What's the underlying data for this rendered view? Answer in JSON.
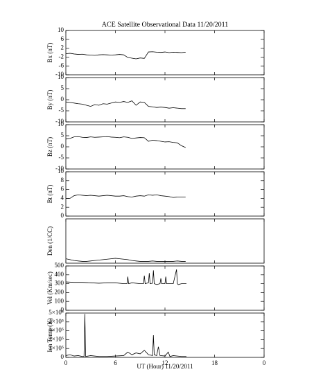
{
  "chart_data": [
    {
      "type": "line",
      "title": "ACE Satellite Observational Data   11/20/2011",
      "ylabel": "Bx (nT)",
      "x": [
        0,
        0.5,
        1,
        1.5,
        2,
        2.5,
        3,
        3.5,
        4,
        4.5,
        5,
        5.5,
        6,
        6.5,
        7,
        7.5,
        8,
        8.5,
        9,
        9.5,
        10,
        10.5,
        11,
        11.5,
        12,
        12.5,
        13,
        13.5,
        14,
        14.5
      ],
      "values": [
        -0.5,
        -0.3,
        -0.6,
        -0.8,
        -0.7,
        -1,
        -1.1,
        -1.2,
        -1,
        -0.9,
        -1,
        -1.1,
        -1,
        -0.8,
        -1,
        -2.2,
        -2.5,
        -2.8,
        -2.4,
        -2.6,
        0.3,
        0.4,
        0.2,
        0.1,
        0.3,
        0,
        0.2,
        0.1,
        0,
        0.2
      ],
      "color": "#000000",
      "xlim": [
        0,
        24
      ],
      "xticks": [
        0,
        6,
        12,
        18,
        24
      ],
      "ylim": [
        -10,
        10
      ],
      "yticks": [
        -10,
        -6,
        -2,
        2,
        6,
        10
      ]
    },
    {
      "type": "line",
      "ylabel": "By (nT)",
      "x": [
        0,
        0.5,
        1,
        1.5,
        2,
        2.5,
        3,
        3.5,
        4,
        4.5,
        5,
        5.5,
        6,
        6.5,
        7,
        7.5,
        8,
        8.5,
        9,
        9.5,
        10,
        10.5,
        11,
        11.5,
        12,
        12.5,
        13,
        13.5,
        14,
        14.5
      ],
      "values": [
        -1,
        -1.2,
        -1.5,
        -1.8,
        -2,
        -2.5,
        -3,
        -2.2,
        -2.5,
        -1.8,
        -2,
        -1.5,
        -1,
        -1.2,
        -0.8,
        -1.2,
        -0.5,
        -2.5,
        -1,
        -1.2,
        -3,
        -3.2,
        -3.5,
        -3.3,
        -3.5,
        -3.8,
        -3.6,
        -3.8,
        -4,
        -4
      ],
      "color": "#000000",
      "xlim": [
        0,
        24
      ],
      "xticks": [
        0,
        6,
        12,
        18,
        24
      ],
      "ylim": [
        -10,
        10
      ],
      "yticks": [
        -10,
        -5,
        0,
        5,
        10
      ]
    },
    {
      "type": "line",
      "ylabel": "Bz (nT)",
      "x": [
        0,
        0.5,
        1,
        1.5,
        2,
        2.5,
        3,
        3.5,
        4,
        4.5,
        5,
        5.5,
        6,
        6.5,
        7,
        7.5,
        8,
        8.5,
        9,
        9.5,
        10,
        10.5,
        11,
        11.5,
        12,
        12.5,
        13,
        13.5,
        14,
        14.5
      ],
      "values": [
        3.5,
        3.8,
        4.5,
        4.6,
        4.3,
        4.2,
        4.5,
        4.3,
        4.4,
        4.5,
        4.6,
        4.4,
        4.3,
        4.1,
        4.5,
        4.3,
        3.8,
        4,
        4.2,
        4.1,
        2.5,
        3,
        2.8,
        2.5,
        2.2,
        2.3,
        2,
        1.8,
        0.5,
        -0.3
      ],
      "color": "#000000",
      "xlim": [
        0,
        24
      ],
      "xticks": [
        0,
        6,
        12,
        18,
        24
      ],
      "ylim": [
        -10,
        10
      ],
      "yticks": [
        -10,
        -5,
        0,
        5,
        10
      ]
    },
    {
      "type": "line",
      "ylabel": "Bt (nT)",
      "x": [
        0,
        0.5,
        1,
        1.5,
        2,
        2.5,
        3,
        3.5,
        4,
        4.5,
        5,
        5.5,
        6,
        6.5,
        7,
        7.5,
        8,
        8.5,
        9,
        9.5,
        10,
        10.5,
        11,
        11.5,
        12,
        12.5,
        13,
        13.5,
        14,
        14.5
      ],
      "values": [
        4,
        4,
        4.6,
        4.8,
        4.7,
        4.6,
        4.7,
        4.6,
        4.5,
        4.6,
        4.7,
        4.6,
        4.5,
        4.5,
        4.6,
        4.4,
        4.3,
        4.5,
        4.6,
        4.5,
        4.8,
        4.7,
        4.8,
        4.6,
        4.5,
        4.4,
        4.2,
        4.3,
        4.3,
        4.3
      ],
      "color": "#000000",
      "xlim": [
        0,
        24
      ],
      "xticks": [
        0,
        6,
        12,
        18,
        24
      ],
      "ylim": [
        0,
        10
      ],
      "yticks": [
        0,
        2,
        4,
        6,
        8,
        10
      ]
    },
    {
      "type": "line",
      "ylabel": "Den (1/CC)",
      "x": [
        0,
        0.5,
        1,
        1.5,
        2,
        2.5,
        3,
        3.5,
        4,
        4.5,
        5,
        5.5,
        6,
        6.5,
        7,
        7.5,
        8,
        8.5,
        9,
        9.5,
        10,
        10.5,
        11,
        11.5,
        12,
        12.5,
        13,
        13.5,
        14,
        14.5
      ],
      "values": [
        5,
        4,
        3,
        2.5,
        2,
        2,
        2.5,
        3,
        3.5,
        4,
        4.5,
        5,
        5.5,
        5,
        4.5,
        4,
        3,
        2.5,
        2,
        2,
        2,
        2.5,
        2,
        2,
        2,
        2,
        2,
        2.5,
        2,
        2
      ],
      "color": "#000000",
      "xlim": [
        0,
        24
      ],
      "xticks": [
        0,
        6,
        12,
        18,
        24
      ],
      "ylim": [
        0,
        50
      ]
    },
    {
      "type": "line",
      "ylabel": "Vel (Km/sec)",
      "x": [
        0,
        1,
        2,
        3,
        4,
        5,
        6,
        7,
        7.4,
        7.5,
        7.6,
        8,
        9,
        9.4,
        9.5,
        9.6,
        10,
        10.1,
        10.2,
        10.5,
        10.6,
        10.7,
        11,
        11.4,
        11.5,
        11.6,
        12,
        12.1,
        12.2,
        13,
        13.4,
        13.5,
        13.6,
        14,
        14.6
      ],
      "values": [
        320,
        315,
        315,
        310,
        305,
        310,
        310,
        300,
        300,
        380,
        300,
        310,
        300,
        300,
        390,
        300,
        310,
        420,
        300,
        305,
        450,
        300,
        290,
        300,
        360,
        300,
        300,
        380,
        300,
        300,
        460,
        300,
        290,
        300,
        300
      ],
      "color": "#000000",
      "xlim": [
        0,
        24
      ],
      "xticks": [
        0,
        6,
        12,
        18,
        24
      ],
      "ylim": [
        0,
        500
      ],
      "yticks": [
        0,
        100,
        200,
        300,
        400,
        500
      ]
    },
    {
      "type": "line",
      "ylabel": "Ion Temp (K)",
      "xlabel": "UT (Hour)  11/20/2011",
      "x": [
        0,
        0.5,
        1,
        1.5,
        2,
        2.2,
        2.3,
        2.4,
        3,
        4,
        5,
        6,
        7,
        7.5,
        8,
        8.5,
        9,
        9.5,
        10,
        10.5,
        10.6,
        10.7,
        11,
        11.2,
        11.4,
        12,
        12.4,
        12.6,
        13,
        14,
        14.6
      ],
      "values": [
        20000,
        30000,
        15000,
        20000,
        10000,
        10000,
        490000,
        10000,
        20000,
        10000,
        10000,
        15000,
        20000,
        60000,
        30000,
        50000,
        40000,
        80000,
        30000,
        20000,
        250000,
        30000,
        20000,
        120000,
        20000,
        15000,
        60000,
        10000,
        20000,
        10000,
        10000
      ],
      "color": "#000000",
      "xlim": [
        0,
        24
      ],
      "xticks": [
        0,
        6,
        12,
        18,
        {
          "value": 24,
          "label": "0"
        }
      ],
      "ylim": [
        0,
        500000
      ],
      "yticks": [
        0,
        {
          "value": 100000,
          "label": "1×10⁵"
        },
        {
          "value": 200000,
          "label": "2×10⁵"
        },
        {
          "value": 300000,
          "label": "3×10⁵"
        },
        {
          "value": 400000,
          "label": "4×10⁵"
        },
        {
          "value": 500000,
          "label": "5×10⁵"
        }
      ]
    }
  ]
}
